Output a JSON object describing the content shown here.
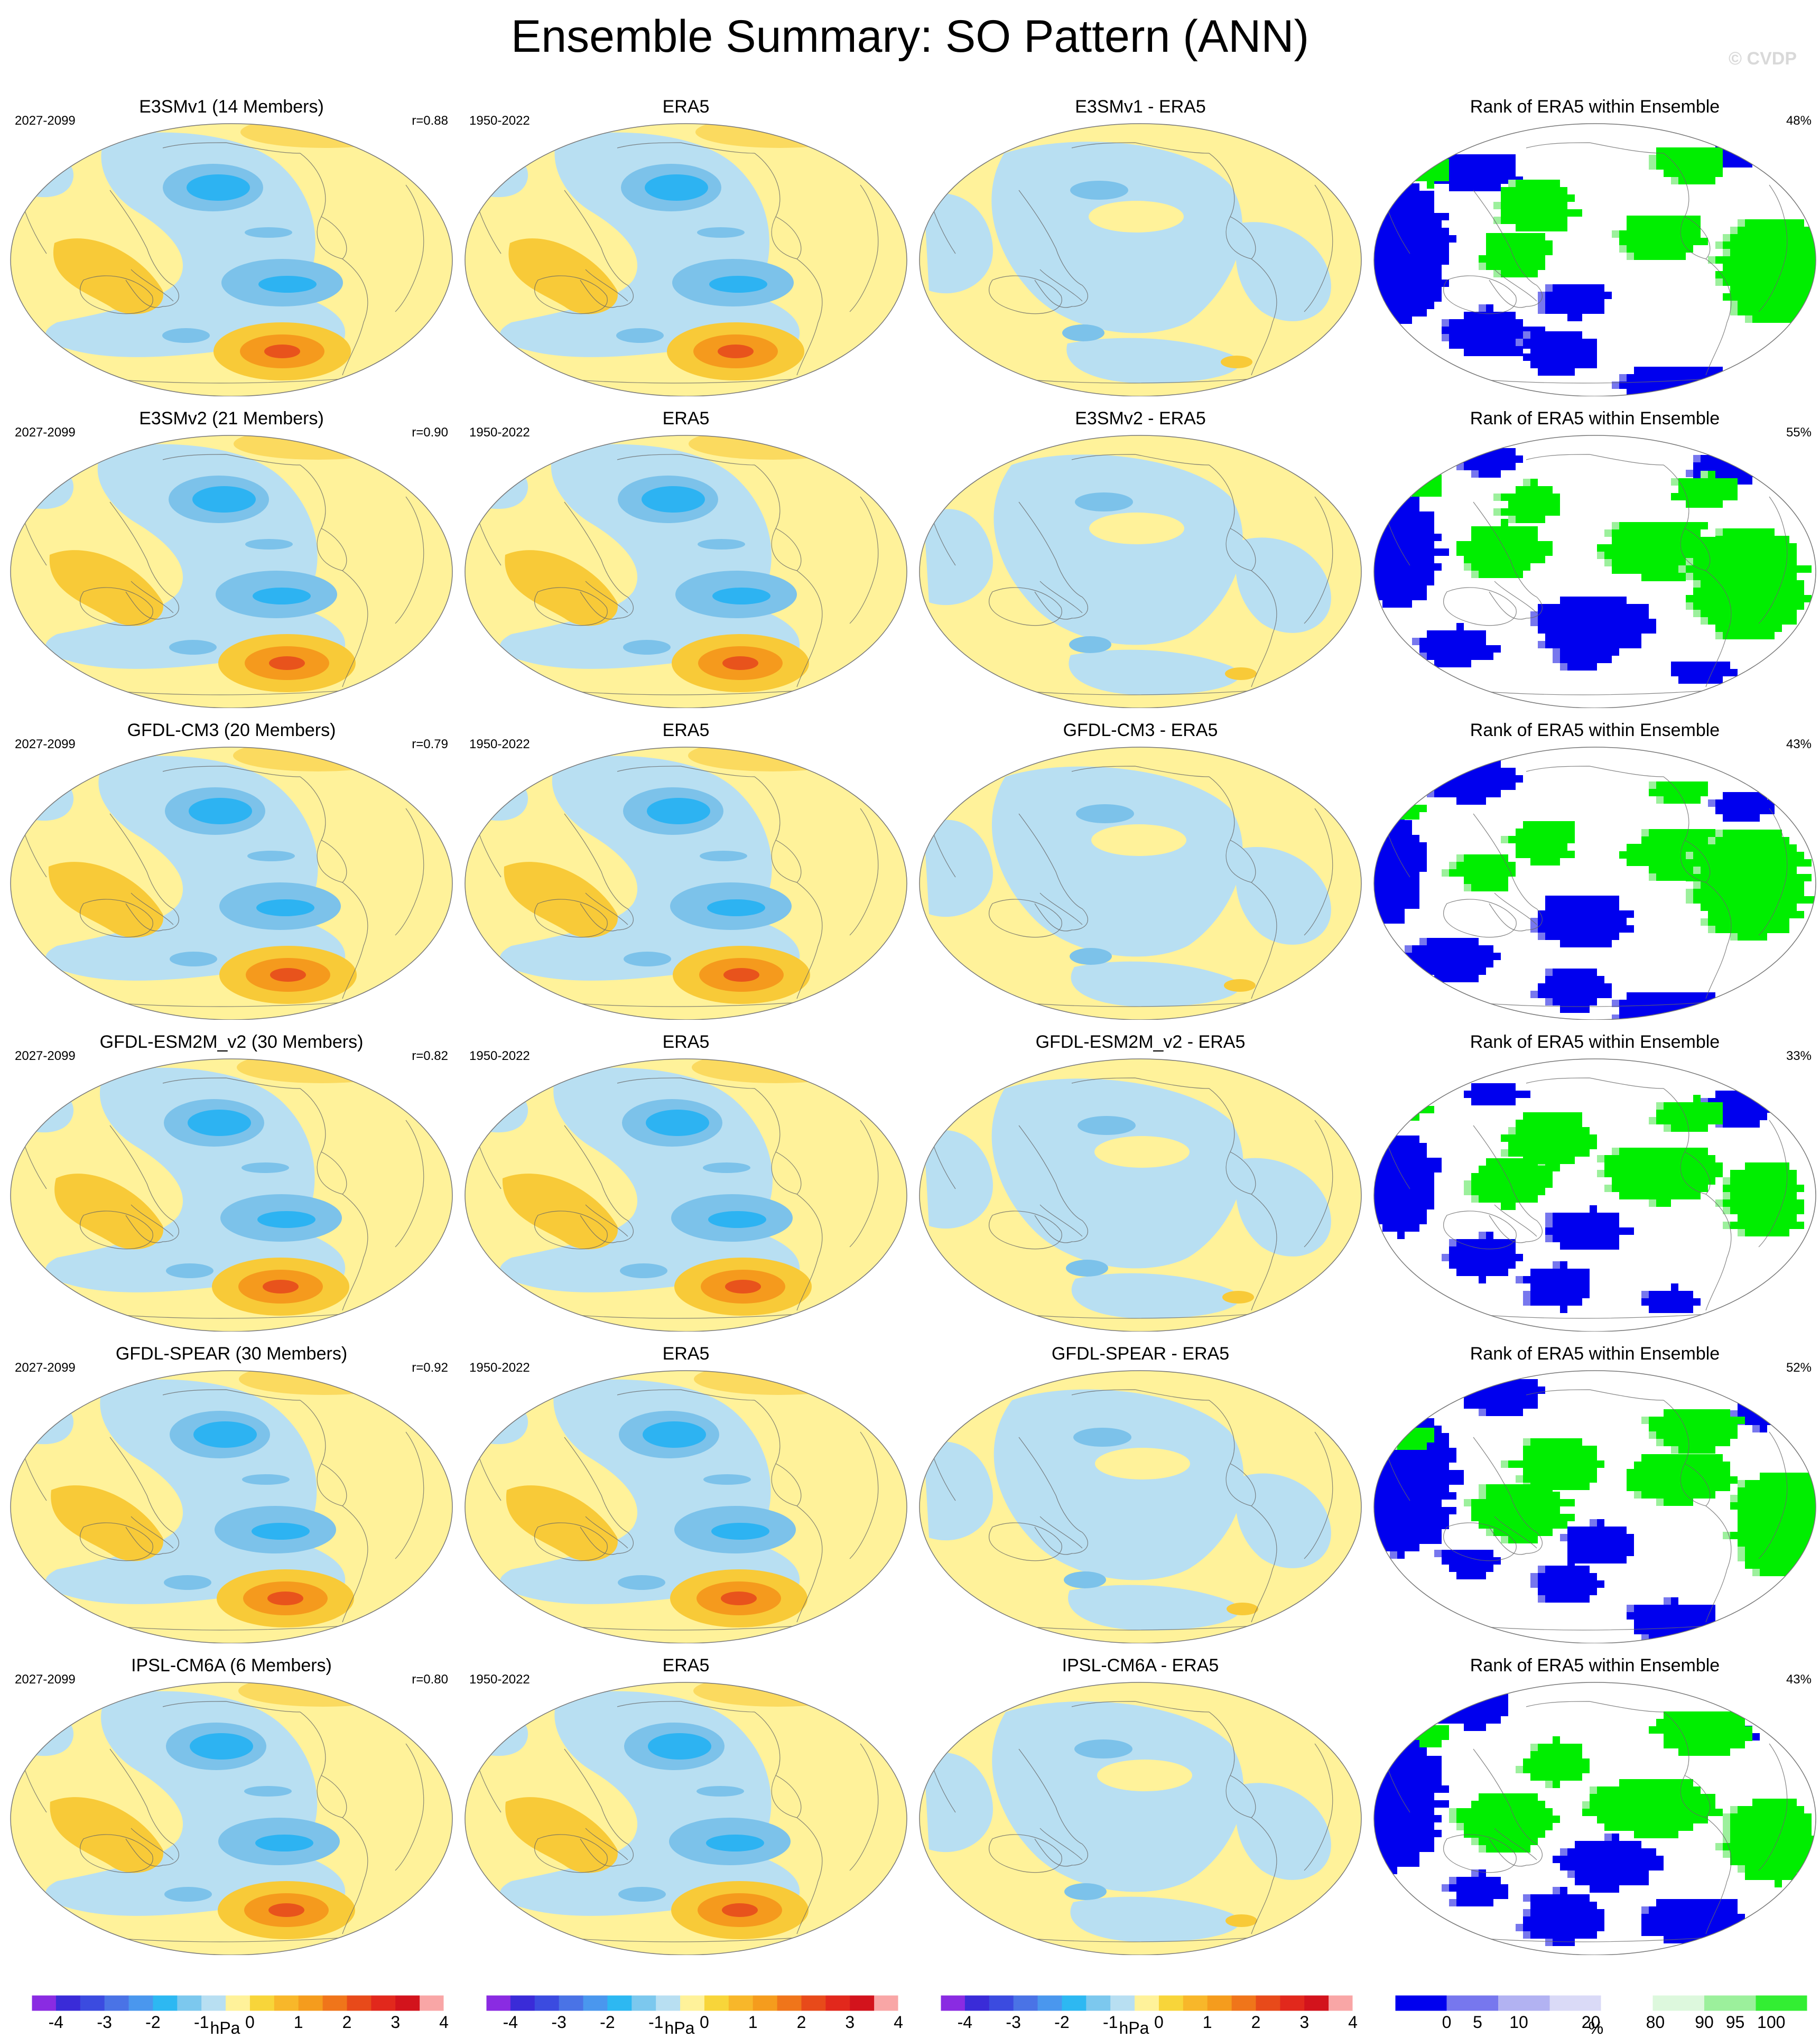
{
  "title": "Ensemble Summary: SO Pattern (ANN)",
  "credit": "© CVDP",
  "rows": [
    {
      "model": "E3SMv1 (14 Members)",
      "period": "2027-2099",
      "r": "r=0.88",
      "diff": "E3SMv1 - ERA5",
      "rank_pct": "48%",
      "seed": 11
    },
    {
      "model": "E3SMv2 (21 Members)",
      "period": "2027-2099",
      "r": "r=0.90",
      "diff": "E3SMv2 - ERA5",
      "rank_pct": "55%",
      "seed": 23
    },
    {
      "model": "GFDL-CM3 (20 Members)",
      "period": "2027-2099",
      "r": "r=0.79",
      "diff": "GFDL-CM3 - ERA5",
      "rank_pct": "43%",
      "seed": 37
    },
    {
      "model": "GFDL-ESM2M_v2 (30 Members)",
      "period": "2027-2099",
      "r": "r=0.82",
      "diff": "GFDL-ESM2M_v2 - ERA5",
      "rank_pct": "33%",
      "seed": 41
    },
    {
      "model": "GFDL-SPEAR (30 Members)",
      "period": "2027-2099",
      "r": "r=0.92",
      "diff": "GFDL-SPEAR - ERA5",
      "rank_pct": "52%",
      "seed": 53
    },
    {
      "model": "IPSL-CM6A (6 Members)",
      "period": "2027-2099",
      "r": "r=0.80",
      "diff": "IPSL-CM6A - ERA5",
      "rank_pct": "43%",
      "seed": 67
    }
  ],
  "obs": {
    "name": "ERA5",
    "period": "1950-2022"
  },
  "rank_title": "Rank of ERA5 within Ensemble",
  "colorbar_hpa": {
    "unit": "hPa",
    "ticks": [
      "-4",
      "-3",
      "-2",
      "-1",
      "0",
      "1",
      "2",
      "3",
      "4"
    ],
    "colors": [
      "#8a2be2",
      "#3a2bd8",
      "#3b4be0",
      "#4a73e6",
      "#4a97ee",
      "#2db8f2",
      "#7cc8ee",
      "#b8dff2",
      "#fff29a",
      "#f8d53a",
      "#f8b72a",
      "#f59c1d",
      "#f0751a",
      "#e84a1a",
      "#e2281c",
      "#d3131c",
      "#f9a6a6"
    ]
  },
  "colorbar_rank": {
    "unit": "%",
    "ticks": [
      "0",
      "5",
      "10",
      "20",
      "80",
      "90",
      "95",
      "100"
    ],
    "colors": [
      "#0000ee",
      "#7777ee",
      "#b2b2f2",
      "#dadaf7",
      "#ffffff",
      "#ddf8dd",
      "#9cf09c",
      "#33ee33"
    ]
  },
  "map_colors": {
    "neg1": "#b8dff2",
    "neg2": "#7cc2ea",
    "neg3": "#2db3f2",
    "pos1": "#fff29a",
    "pos2": "#f8ca38",
    "pos3": "#f59a1d",
    "pos4": "#e8531c",
    "rank_low": "#0000ee",
    "rank_high": "#00ee00",
    "rank_mid": "#ffffff"
  }
}
